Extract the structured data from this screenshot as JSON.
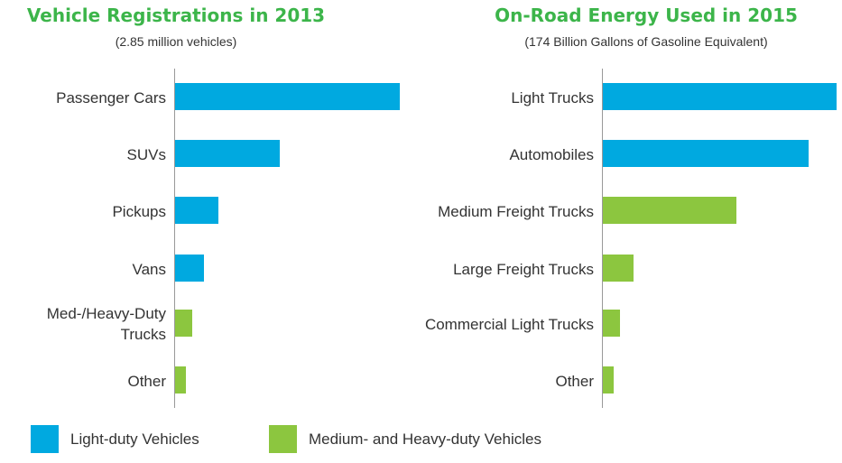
{
  "colors": {
    "light_duty": "#00a9e0",
    "heavy_duty": "#8cc63f",
    "title": "#3cb54a"
  },
  "chart_data": [
    {
      "type": "bar",
      "orientation": "horizontal",
      "title": "Vehicle Registrations in 2013",
      "subtitle": "(2.85 million vehicles)",
      "categories": [
        [
          "Passenger Cars"
        ],
        [
          "SUVs"
        ],
        [
          "Pickups"
        ],
        [
          "Vans"
        ],
        [
          "Med-/Heavy-Duty",
          "Trucks"
        ],
        [
          "Other"
        ]
      ],
      "values": [
        100,
        46.5,
        19.3,
        12.8,
        7.6,
        4.8
      ],
      "groups": [
        "light_duty",
        "light_duty",
        "light_duty",
        "light_duty",
        "heavy_duty",
        "heavy_duty"
      ],
      "xlim": [
        0,
        100
      ],
      "grid": false
    },
    {
      "type": "bar",
      "orientation": "horizontal",
      "title": "On-Road Energy Used in 2015",
      "subtitle": "(174 Billion Gallons of Gasoline Equivalent)",
      "categories": [
        [
          "Light Trucks"
        ],
        [
          "Automobiles"
        ],
        [
          "Medium Freight Trucks"
        ],
        [
          "Large Freight Trucks"
        ],
        [
          "Commercial Light Trucks"
        ],
        [
          "Other"
        ]
      ],
      "values": [
        100,
        87.9,
        57.2,
        13.2,
        7.4,
        4.7
      ],
      "groups": [
        "light_duty",
        "light_duty",
        "heavy_duty",
        "heavy_duty",
        "heavy_duty",
        "heavy_duty"
      ],
      "xlim": [
        0,
        100
      ],
      "grid": false
    }
  ],
  "legend": {
    "placement": "bottom-left",
    "items": [
      {
        "key": "light_duty",
        "label": "Light-duty Vehicles"
      },
      {
        "key": "heavy_duty",
        "label": "Medium- and Heavy-duty Vehicles"
      }
    ]
  }
}
